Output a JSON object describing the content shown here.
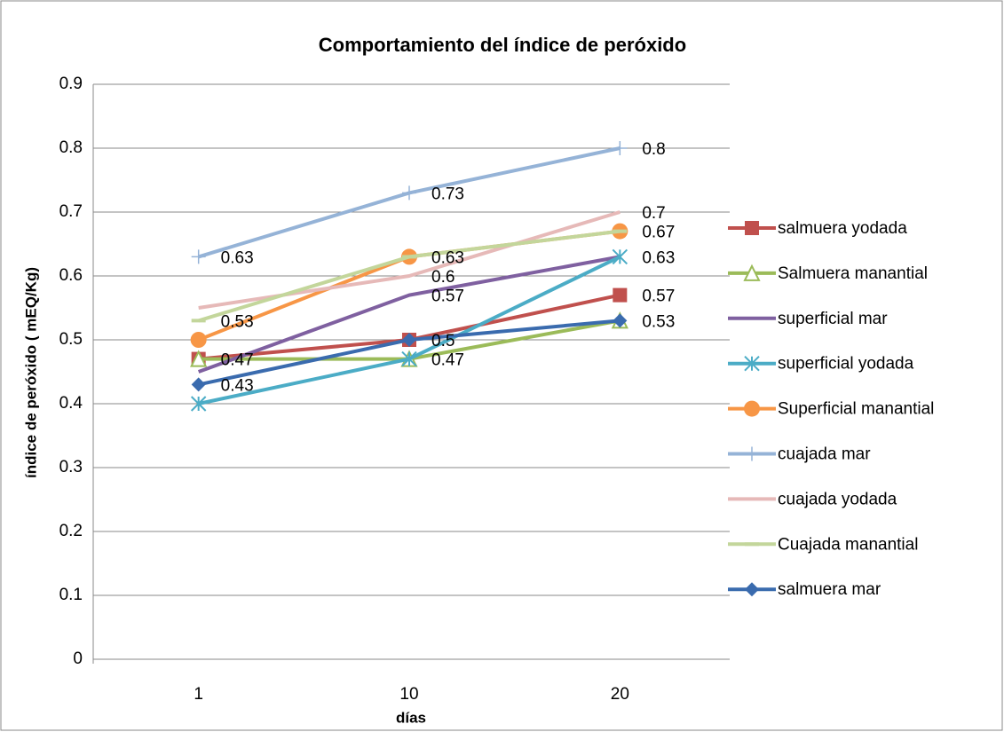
{
  "chart_data": {
    "type": "line",
    "title": "Comportamiento del índice de peróxido",
    "x_label": "días",
    "y_label": "índice de peróxido ( mEQ/Kg)",
    "categories": [
      "1",
      "10",
      "20"
    ],
    "ylim": [
      0,
      0.9
    ],
    "yticks": [
      0,
      0.1,
      0.2,
      0.3,
      0.4,
      0.5,
      0.6,
      0.7,
      0.8,
      0.9
    ],
    "grid": true,
    "legend": "right",
    "series": [
      {
        "name": "salmuera yodada",
        "color": "#c0504d",
        "marker": "square",
        "values": [
          0.47,
          0.5,
          0.57
        ],
        "label_points": [
          0,
          2
        ]
      },
      {
        "name": "Salmuera manantial",
        "color": "#9bbb59",
        "marker": "triangle",
        "values": [
          0.47,
          0.47,
          0.53
        ],
        "label_points": [
          1
        ]
      },
      {
        "name": "superficial mar",
        "color": "#7f60a0",
        "marker": "none",
        "values": [
          0.45,
          0.57,
          0.63
        ],
        "label_points": [
          1
        ]
      },
      {
        "name": "superficial yodada",
        "color": "#4bacc6",
        "marker": "star",
        "values": [
          0.4,
          0.47,
          0.63
        ],
        "label_points": [
          2
        ]
      },
      {
        "name": "Superficial manantial",
        "color": "#f79646",
        "marker": "circle",
        "values": [
          0.5,
          0.63,
          0.67
        ],
        "label_points": [
          1
        ]
      },
      {
        "name": "cuajada mar",
        "color": "#95b3d7",
        "marker": "plus",
        "values": [
          0.63,
          0.73,
          0.8
        ],
        "label_points": [
          0,
          1,
          2
        ]
      },
      {
        "name": "cuajada yodada",
        "color": "#e6b9b8",
        "marker": "none",
        "values": [
          0.55,
          0.6,
          0.7
        ],
        "label_points": [
          1,
          2
        ]
      },
      {
        "name": "Cuajada manantial",
        "color": "#c3d69b",
        "marker": "dash",
        "values": [
          0.53,
          0.63,
          0.67
        ],
        "label_points": [
          0,
          2
        ]
      },
      {
        "name": "salmuera  mar",
        "color": "#3a6bae",
        "marker": "diamond",
        "values": [
          0.43,
          0.5,
          0.53
        ],
        "label_points": [
          0,
          1,
          2
        ]
      }
    ]
  }
}
